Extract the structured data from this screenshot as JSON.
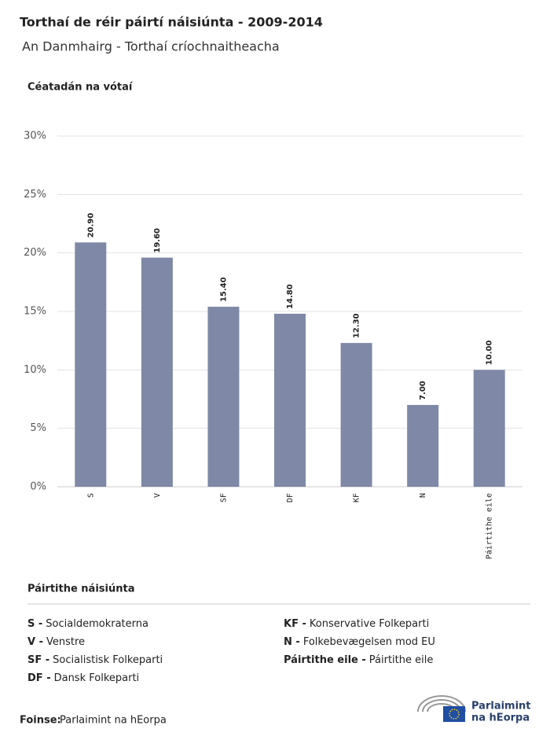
{
  "chart_data": {
    "type": "bar",
    "title": "Torthaí de réir páirtí náisiúnta - 2009-2014",
    "subtitle": "An Danmhairg - Torthaí críochnaitheacha",
    "y_label": "Céatadán na vótaí",
    "categories": [
      "S",
      "V",
      "SF",
      "DF",
      "KF",
      "N",
      "Páirtithe eile"
    ],
    "values": [
      20.9,
      19.6,
      15.4,
      14.8,
      12.3,
      7,
      10
    ],
    "value_labels": [
      "20.90",
      "19.60",
      "15.40",
      "14.80",
      "12.30",
      "7.00",
      "10.00"
    ],
    "color": "#7f88a6",
    "ylim": [
      0,
      30
    ],
    "yticks": [
      {
        "value": 0,
        "label": "0%"
      },
      {
        "value": 5,
        "label": "5%"
      },
      {
        "value": 10,
        "label": "10%"
      },
      {
        "value": 15,
        "label": "15%"
      },
      {
        "value": 20,
        "label": "20%"
      },
      {
        "value": 25,
        "label": "25%"
      },
      {
        "value": 30,
        "label": "30%"
      }
    ],
    "grid": true
  },
  "legend": {
    "title": "Páirtithe náisiúnta",
    "parties": [
      {
        "abbr": "S -",
        "name": "Socialdemokraterna"
      },
      {
        "abbr": "V -",
        "name": "Venstre"
      },
      {
        "abbr": "SF -",
        "name": "Socialistisk Folkeparti"
      },
      {
        "abbr": "DF -",
        "name": "Dansk Folkeparti"
      },
      {
        "abbr": "KF -",
        "name": "Konservative Folkeparti"
      },
      {
        "abbr": "N -",
        "name": "Folkebevægelsen mod EU"
      },
      {
        "abbr": "Páirtithe eile -",
        "name": "Páirtithe eile"
      }
    ]
  },
  "footer": {
    "source_label": "Foinse:",
    "source": "Parlaimint na hEorpa",
    "logo_line1": "Parlaimint",
    "logo_line2": "na hEorpa"
  }
}
